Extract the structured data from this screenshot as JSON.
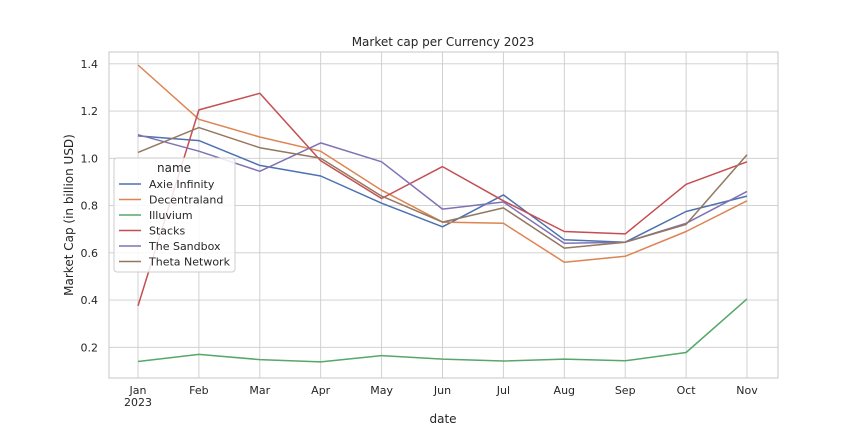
{
  "chart_data": {
    "type": "line",
    "title": "Market cap per Currency 2023",
    "xlabel": "date",
    "ylabel": "Market Cap (in billion USD)",
    "x": [
      "Jan\n2023",
      "Feb",
      "Mar",
      "Apr",
      "May",
      "Jun",
      "Jul",
      "Aug",
      "Sep",
      "Oct",
      "Nov"
    ],
    "ylim": [
      0.07,
      1.45
    ],
    "yticks": [
      "0.2",
      "0.4",
      "0.6",
      "0.8",
      "1.0",
      "1.2",
      "1.4"
    ],
    "grid": true,
    "legend": {
      "title": "name",
      "placement": "center-left"
    },
    "series": [
      {
        "name": "Axie Infinity",
        "color": "#4c72b0",
        "values": [
          1.095,
          1.075,
          0.97,
          0.925,
          0.81,
          0.71,
          0.845,
          0.655,
          0.645,
          0.775,
          0.84
        ]
      },
      {
        "name": "Decentraland",
        "color": "#dd8452",
        "values": [
          1.395,
          1.165,
          1.09,
          1.03,
          0.865,
          0.73,
          0.725,
          0.56,
          0.585,
          0.69,
          0.82
        ]
      },
      {
        "name": "Illuvium",
        "color": "#55a868",
        "values": [
          0.14,
          0.17,
          0.148,
          0.138,
          0.165,
          0.15,
          0.142,
          0.15,
          0.143,
          0.178,
          0.405
        ]
      },
      {
        "name": "Stacks",
        "color": "#c44e52",
        "values": [
          0.375,
          1.205,
          1.275,
          0.99,
          0.83,
          0.965,
          0.82,
          0.69,
          0.68,
          0.89,
          0.985
        ]
      },
      {
        "name": "The Sandbox",
        "color": "#8172b3",
        "values": [
          1.1,
          1.03,
          0.945,
          1.065,
          0.985,
          0.785,
          0.815,
          0.64,
          0.645,
          0.725,
          0.86
        ]
      },
      {
        "name": "Theta Network",
        "color": "#937860",
        "values": [
          1.025,
          1.13,
          1.045,
          1.0,
          0.84,
          0.73,
          0.79,
          0.62,
          0.645,
          0.72,
          1.015
        ]
      }
    ]
  }
}
